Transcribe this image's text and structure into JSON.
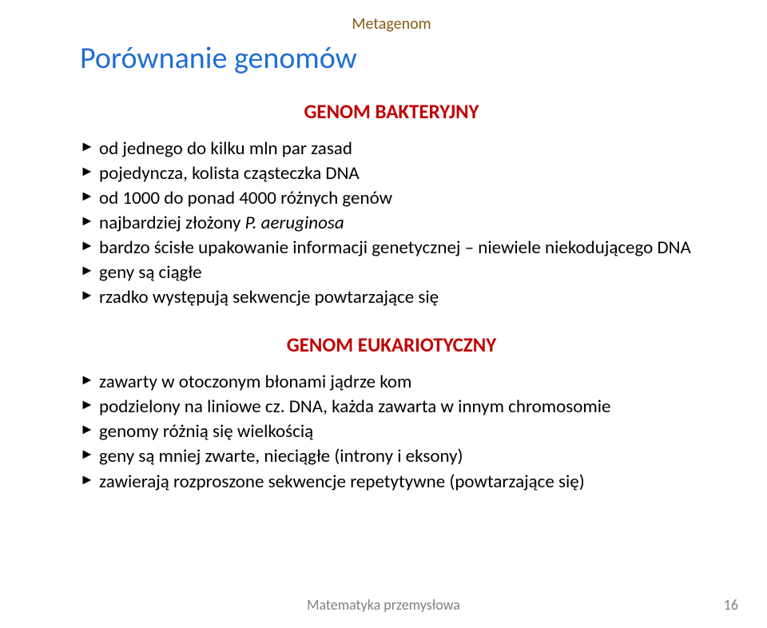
{
  "colors": {
    "brown": "#8a5a17",
    "blue": "#1f6fd4",
    "red": "#c00000",
    "text": "#000000",
    "footer": "#808080",
    "background": "#ffffff"
  },
  "section_label": "Metagenom",
  "title": "Porównanie genomów",
  "sub1": "GENOM BAKTERYJNY",
  "list1": [
    "od jednego do kilku mln par zasad",
    "pojedyncza, kolista cząsteczka DNA",
    "od 1000 do ponad 4000 różnych genów",
    "najbardziej złożony P. aeruginosa",
    "bardzo ścisłe upakowanie informacji genetycznej – niewiele niekodującego DNA",
    "geny są ciągłe",
    "rzadko występują sekwencje powtarzające się"
  ],
  "list1_item3_prefix": "najbardziej złożony ",
  "list1_item3_italic": "P. aeruginosa",
  "sub2": "GENOM EUKARIOTYCZNY",
  "list2": [
    "zawarty w otoczonym błonami jądrze kom",
    "podzielony na liniowe cz. DNA, każda zawarta w innym chromosomie",
    "genomy różnią się wielkością",
    "geny są mniej zwarte, nieciągłe (introny i eksony)",
    "zawierają rozproszone sekwencje repetytywne (powtarzające się)"
  ],
  "footer": "Matematyka przemysłowa",
  "page": "16",
  "fonts": {
    "section_label": 20,
    "title": 38,
    "subheading": 25,
    "bullet": 23,
    "footer": 18
  }
}
